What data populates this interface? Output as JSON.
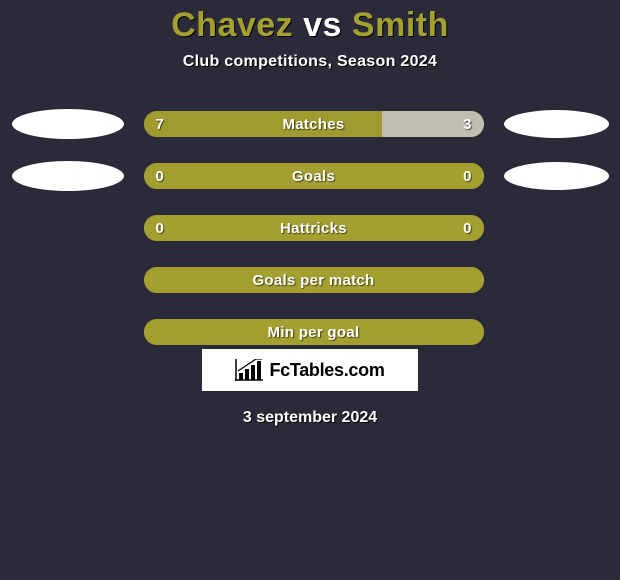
{
  "background_color": "#2a2a39",
  "title": {
    "player1": "Chavez",
    "vs": "vs",
    "player2": "Smith",
    "player_color": "#a4a030",
    "vs_color": "#ffffff",
    "fontsize": 34
  },
  "subtitle": {
    "text": "Club competitions, Season 2024",
    "color": "#ffffff",
    "fontsize": 16
  },
  "bars": {
    "track_width": 340,
    "track_height": 26,
    "border_radius": 13,
    "label_color": "#ffffff",
    "value_color": "#ffffff",
    "label_fontsize": 15,
    "left_color": "#a4a030",
    "right_color": "#a4a030",
    "track_bg_when_empty": "#a4a030"
  },
  "ellipses": {
    "color": "#ffffff",
    "left_width": 112,
    "left_height": 30,
    "right_width": 105,
    "right_height": 28
  },
  "stats": [
    {
      "label": "Matches",
      "left_value": "7",
      "right_value": "3",
      "left_pct": 70,
      "right_pct": 30,
      "left_fill": "#9f9b2f",
      "right_fill": "#c2bdb1",
      "show_left_ellipse": true,
      "show_right_ellipse": true
    },
    {
      "label": "Goals",
      "left_value": "0",
      "right_value": "0",
      "left_pct": 50,
      "right_pct": 50,
      "left_fill": "#a4a030",
      "right_fill": "#a4a030",
      "show_left_ellipse": true,
      "show_right_ellipse": true
    },
    {
      "label": "Hattricks",
      "left_value": "0",
      "right_value": "0",
      "left_pct": 50,
      "right_pct": 50,
      "left_fill": "#a4a030",
      "right_fill": "#a4a030",
      "show_left_ellipse": false,
      "show_right_ellipse": false
    },
    {
      "label": "Goals per match",
      "left_value": "",
      "right_value": "",
      "left_pct": 50,
      "right_pct": 50,
      "left_fill": "#a4a030",
      "right_fill": "#a4a030",
      "show_left_ellipse": false,
      "show_right_ellipse": false
    },
    {
      "label": "Min per goal",
      "left_value": "",
      "right_value": "",
      "left_pct": 50,
      "right_pct": 50,
      "left_fill": "#a4a030",
      "right_fill": "#a4a030",
      "show_left_ellipse": false,
      "show_right_ellipse": false
    }
  ],
  "logo": {
    "text": "FcTables.com",
    "box_bg": "#ffffff",
    "text_color": "#000000",
    "icon_color": "#000000"
  },
  "date": {
    "text": "3 september 2024",
    "color": "#ffffff",
    "fontsize": 16
  }
}
